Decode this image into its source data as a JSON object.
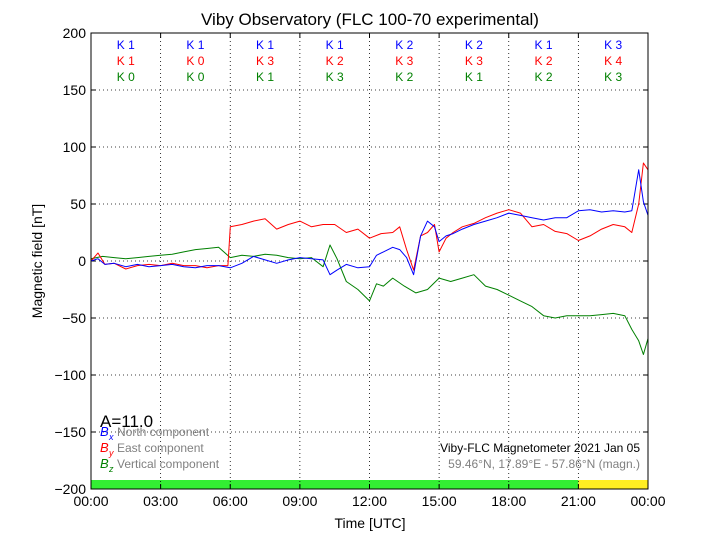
{
  "chart_data": {
    "type": "line",
    "title": "Viby Observatory (FLC 100-70 experimental)",
    "xlabel": "Time [UTC]",
    "ylabel": "Magnetic field [nT]",
    "xlim": [
      0,
      24
    ],
    "ylim": [
      -200,
      200
    ],
    "x_tick_labels": [
      "00:00",
      "03:00",
      "06:00",
      "09:00",
      "12:00",
      "15:00",
      "18:00",
      "21:00",
      "00:00"
    ],
    "y_ticks": [
      -200,
      -150,
      -100,
      -50,
      0,
      50,
      100,
      150,
      200
    ],
    "y_tick_labels": [
      "−200",
      "−150",
      "−100",
      "−50",
      "0",
      "50",
      "100",
      "150",
      "200"
    ],
    "grid": true,
    "annotation_a": "A=11.0",
    "info_line1": "Viby-FLC Magnetometer 2021 Jan 05",
    "info_line2": "59.46°N, 17.89°E - 57.86°N (magn.)",
    "k_index": {
      "blue": [
        "K 1",
        "K 1",
        "K 1",
        "K 1",
        "K 2",
        "K 2",
        "K 1",
        "K 3"
      ],
      "red": [
        "K 1",
        "K 0",
        "K 3",
        "K 2",
        "K 3",
        "K 3",
        "K 2",
        "K 4"
      ],
      "green": [
        "K 0",
        "K 0",
        "K 1",
        "K 3",
        "K 2",
        "K 1",
        "K 2",
        "K 3"
      ]
    },
    "status_bar": [
      {
        "from": 0,
        "to": 21,
        "color": "#33ee33"
      },
      {
        "from": 21,
        "to": 24,
        "color": "#ffee22"
      }
    ],
    "series": [
      {
        "name": "North component",
        "symbol": "B",
        "subscript": "x",
        "color": "#0000ff",
        "x": [
          0,
          0.3,
          0.6,
          1,
          1.5,
          2,
          2.5,
          3,
          3.5,
          4,
          4.5,
          5,
          5.5,
          6,
          6.5,
          7,
          7.5,
          8,
          8.5,
          9,
          9.5,
          10,
          10.3,
          10.6,
          11,
          11.5,
          12,
          12.3,
          12.6,
          13,
          13.3,
          13.6,
          13.9,
          14.2,
          14.5,
          14.8,
          15,
          15.3,
          15.6,
          16,
          16.5,
          17,
          17.5,
          18,
          18.5,
          19,
          19.5,
          20,
          20.5,
          21,
          21.5,
          22,
          22.5,
          23,
          23.3,
          23.6,
          23.8,
          24
        ],
        "y": [
          0,
          2,
          -3,
          -2,
          -5,
          -3,
          -5,
          -4,
          -3,
          -5,
          -6,
          -4,
          -4,
          -6,
          -2,
          4,
          1,
          -2,
          1,
          3,
          2,
          1,
          -12,
          -8,
          -3,
          -6,
          -5,
          5,
          8,
          12,
          10,
          3,
          -12,
          22,
          35,
          30,
          17,
          22,
          24,
          28,
          32,
          35,
          38,
          42,
          40,
          38,
          36,
          38,
          38,
          44,
          45,
          43,
          44,
          43,
          44,
          80,
          52,
          40
        ]
      },
      {
        "name": "East component",
        "symbol": "B",
        "subscript": "y",
        "color": "#ff0000",
        "x": [
          0,
          0.3,
          0.6,
          1,
          1.5,
          2,
          2.5,
          3,
          3.5,
          4,
          4.5,
          5,
          5.5,
          5.9,
          6,
          6.5,
          7,
          7.5,
          8,
          8.5,
          9,
          9.5,
          10,
          10.5,
          11,
          11.5,
          12,
          12.5,
          13,
          13.3,
          13.6,
          13.9,
          14.2,
          14.5,
          14.8,
          15,
          15.3,
          15.6,
          16,
          16.5,
          17,
          17.5,
          18,
          18.5,
          19,
          19.5,
          20,
          20.5,
          21,
          21.5,
          22,
          22.5,
          23,
          23.3,
          23.6,
          23.8,
          24
        ],
        "y": [
          0,
          7,
          -3,
          -2,
          -7,
          -4,
          -3,
          -4,
          -2,
          -4,
          -4,
          -6,
          -4,
          -4,
          30,
          32,
          35,
          37,
          28,
          32,
          35,
          30,
          32,
          32,
          25,
          28,
          20,
          24,
          25,
          30,
          10,
          -8,
          22,
          25,
          32,
          8,
          20,
          25,
          30,
          33,
          38,
          42,
          45,
          42,
          30,
          32,
          26,
          24,
          18,
          22,
          28,
          32,
          30,
          25,
          50,
          86,
          80
        ]
      },
      {
        "name": "Vertical component",
        "symbol": "B",
        "subscript": "z",
        "color": "#008000",
        "x": [
          0,
          0.5,
          1,
          1.5,
          2,
          2.5,
          3,
          3.5,
          4,
          4.5,
          5,
          5.5,
          6,
          6.5,
          7,
          7.5,
          8,
          8.5,
          9,
          9.5,
          10,
          10.3,
          10.6,
          11,
          11.5,
          12,
          12.3,
          12.6,
          13,
          13.5,
          14,
          14.5,
          15,
          15.5,
          16,
          16.5,
          17,
          17.5,
          18,
          18.5,
          19,
          19.5,
          20,
          20.5,
          21,
          21.5,
          22,
          22.5,
          23,
          23.3,
          23.6,
          23.8,
          24
        ],
        "y": [
          2,
          4,
          3,
          2,
          3,
          4,
          5,
          6,
          8,
          10,
          11,
          12,
          3,
          5,
          4,
          6,
          5,
          3,
          2,
          3,
          -5,
          14,
          2,
          -18,
          -25,
          -35,
          -20,
          -22,
          -15,
          -22,
          -28,
          -25,
          -15,
          -18,
          -15,
          -12,
          -22,
          -25,
          -30,
          -35,
          -40,
          -48,
          -50,
          -48,
          -48,
          -48,
          -47,
          -46,
          -48,
          -60,
          -70,
          -82,
          -68
        ]
      }
    ]
  }
}
